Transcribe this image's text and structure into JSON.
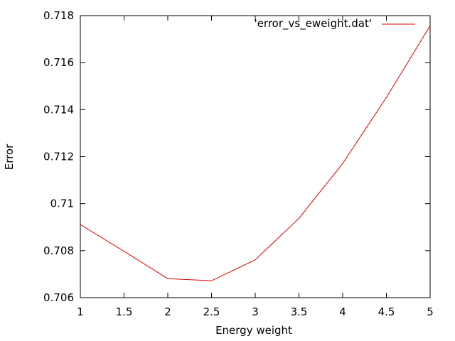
{
  "chart_data": {
    "type": "line",
    "title": "",
    "xlabel": "Energy weight",
    "ylabel": "Error",
    "xlim": [
      1,
      5
    ],
    "ylim": [
      0.706,
      0.718
    ],
    "xticks": [
      "1",
      "1.5",
      "2",
      "2.5",
      "3",
      "3.5",
      "4",
      "4.5",
      "5"
    ],
    "yticks": [
      "0.706",
      "0.708",
      "0.71",
      "0.712",
      "0.714",
      "0.716",
      "0.718"
    ],
    "legend_position": "top-right",
    "grid": false,
    "series": [
      {
        "name": "'error_vs_eweight.dat'",
        "color": "#e00000",
        "x": [
          1,
          1.5,
          2,
          2.5,
          3,
          3.5,
          4,
          4.5,
          5
        ],
        "y": [
          0.70911,
          0.70797,
          0.70681,
          0.70672,
          0.70761,
          0.70938,
          0.71171,
          0.71452,
          0.71757
        ]
      }
    ]
  }
}
